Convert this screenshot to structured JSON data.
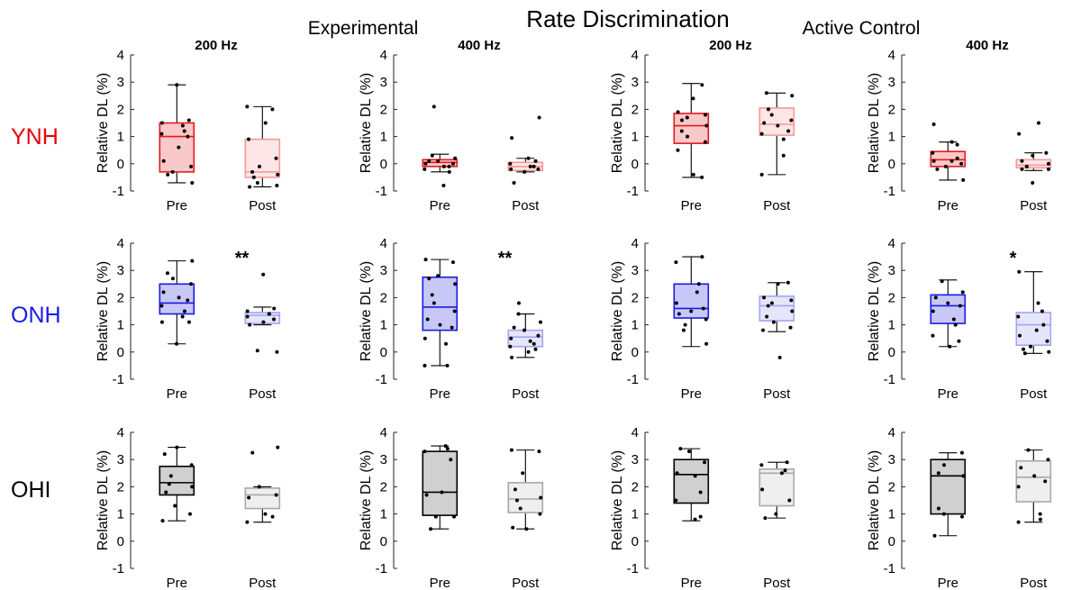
{
  "title": "Rate Discrimination",
  "group_labels": [
    "Experimental",
    "Active Control"
  ],
  "colors": {
    "YNH": {
      "pre_fill": "#f9c8c8",
      "pre_stroke": "#e41a1c",
      "post_fill": "#fde6e6",
      "post_stroke": "#f39a9a",
      "label": "#e8000b"
    },
    "ONH": {
      "pre_fill": "#c8c8f7",
      "pre_stroke": "#1a1ae4",
      "post_fill": "#e6e6fb",
      "post_stroke": "#a5a5f0",
      "label": "#1a1ae8"
    },
    "OHI": {
      "pre_fill": "#d0d0d0",
      "pre_stroke": "#000000",
      "post_fill": "#efefef",
      "post_stroke": "#a8a8a8",
      "label": "#000000"
    }
  },
  "chart_data": [
    {
      "type": "box",
      "group": "YNH",
      "condition": "Experimental",
      "title": "200 Hz",
      "ylabel": "Relative DL (%)",
      "ylim": [
        -1,
        4
      ],
      "yticks": [
        "-1",
        "0",
        "1",
        "2",
        "3",
        "4"
      ],
      "categories": [
        "Pre",
        "Post"
      ],
      "significance": "",
      "boxes": [
        {
          "label": "Pre",
          "whisker_low": -0.7,
          "q1": -0.3,
          "median": 1.0,
          "q3": 1.5,
          "whisker_high": 2.9,
          "points": [
            2.9,
            1.6,
            1.5,
            1.4,
            1.2,
            1.1,
            1.0,
            0.6,
            0.1,
            -0.1,
            -0.3,
            -0.4,
            -0.7
          ]
        },
        {
          "label": "Post",
          "whisker_low": -0.85,
          "q1": -0.5,
          "median": -0.3,
          "q3": 0.9,
          "whisker_high": 2.1,
          "points": [
            2.1,
            2.0,
            1.5,
            0.9,
            0.2,
            -0.1,
            -0.3,
            -0.4,
            -0.5,
            -0.7,
            -0.8,
            -0.85
          ]
        }
      ]
    },
    {
      "type": "box",
      "group": "YNH",
      "condition": "Experimental",
      "title": "400 Hz",
      "ylabel": "Relative DL (%)",
      "ylim": [
        -1,
        4
      ],
      "yticks": [
        "-1",
        "0",
        "1",
        "2",
        "3",
        "4"
      ],
      "categories": [
        "Pre",
        "Post"
      ],
      "significance": "",
      "boxes": [
        {
          "label": "Pre",
          "whisker_low": -0.3,
          "q1": -0.1,
          "median": 0.05,
          "q3": 0.15,
          "whisker_high": 0.35,
          "points": [
            2.1,
            0.3,
            0.2,
            0.1,
            0.1,
            0.0,
            0.0,
            -0.1,
            -0.1,
            -0.2,
            -0.3,
            -0.8
          ]
        },
        {
          "label": "Post",
          "whisker_low": -0.3,
          "q1": -0.25,
          "median": -0.1,
          "q3": 0.05,
          "whisker_high": 0.2,
          "points": [
            1.7,
            0.95,
            0.2,
            0.1,
            0.0,
            -0.1,
            -0.1,
            -0.2,
            -0.2,
            -0.3,
            -0.7
          ]
        }
      ]
    },
    {
      "type": "box",
      "group": "YNH",
      "condition": "Active Control",
      "title": "200 Hz",
      "ylabel": "Relative DL (%)",
      "ylim": [
        -1,
        4
      ],
      "yticks": [
        "-1",
        "0",
        "1",
        "2",
        "3",
        "4"
      ],
      "categories": [
        "Pre",
        "Post"
      ],
      "significance": "",
      "boxes": [
        {
          "label": "Pre",
          "whisker_low": -0.5,
          "q1": 0.75,
          "median": 1.4,
          "q3": 1.85,
          "whisker_high": 2.95,
          "points": [
            2.9,
            2.4,
            1.9,
            1.8,
            1.7,
            1.6,
            1.4,
            1.2,
            1.0,
            0.8,
            0.5,
            -0.4,
            -0.5
          ]
        },
        {
          "label": "Post",
          "whisker_low": -0.4,
          "q1": 1.05,
          "median": 1.45,
          "q3": 2.05,
          "whisker_high": 2.6,
          "points": [
            2.6,
            2.5,
            2.0,
            1.8,
            1.6,
            1.5,
            1.4,
            1.2,
            1.1,
            0.9,
            0.3,
            -0.4
          ]
        }
      ]
    },
    {
      "type": "box",
      "group": "YNH",
      "condition": "Active Control",
      "title": "400 Hz",
      "ylabel": "Relative DL (%)",
      "ylim": [
        -1,
        4
      ],
      "yticks": [
        "-1",
        "0",
        "1",
        "2",
        "3",
        "4"
      ],
      "categories": [
        "Pre",
        "Post"
      ],
      "significance": "",
      "boxes": [
        {
          "label": "Pre",
          "whisker_low": -0.6,
          "q1": -0.1,
          "median": 0.15,
          "q3": 0.45,
          "whisker_high": 0.8,
          "points": [
            1.45,
            0.8,
            0.7,
            0.4,
            0.2,
            0.1,
            0.1,
            0.0,
            -0.1,
            -0.2,
            -0.6
          ]
        },
        {
          "label": "Post",
          "whisker_low": -0.25,
          "q1": -0.15,
          "median": -0.05,
          "q3": 0.15,
          "whisker_high": 0.4,
          "points": [
            1.5,
            1.1,
            0.4,
            0.3,
            0.1,
            0.0,
            -0.1,
            -0.1,
            -0.2,
            -0.2,
            -0.7
          ]
        }
      ]
    },
    {
      "type": "box",
      "group": "ONH",
      "condition": "Experimental",
      "title": "",
      "ylabel": "Relative DL (%)",
      "ylim": [
        -1,
        4
      ],
      "yticks": [
        "-1",
        "0",
        "1",
        "2",
        "3",
        "4"
      ],
      "categories": [
        "Pre",
        "Post"
      ],
      "significance": "**",
      "boxes": [
        {
          "label": "Pre",
          "whisker_low": 0.3,
          "q1": 1.4,
          "median": 1.8,
          "q3": 2.5,
          "whisker_high": 3.35,
          "points": [
            3.35,
            2.9,
            2.7,
            2.5,
            2.2,
            2.0,
            1.9,
            1.7,
            1.5,
            1.3,
            1.1,
            1.1,
            0.3
          ]
        },
        {
          "label": "Post",
          "whisker_low": 1.0,
          "q1": 1.05,
          "median": 1.35,
          "q3": 1.45,
          "whisker_high": 1.65,
          "points": [
            2.85,
            1.6,
            1.5,
            1.4,
            1.4,
            1.3,
            1.2,
            1.1,
            1.0,
            0.0,
            0.05
          ]
        }
      ]
    },
    {
      "type": "box",
      "group": "ONH",
      "condition": "Experimental",
      "title": "",
      "ylabel": "Relative DL (%)",
      "ylim": [
        -1,
        4
      ],
      "yticks": [
        "-1",
        "0",
        "1",
        "2",
        "3",
        "4"
      ],
      "categories": [
        "Pre",
        "Post"
      ],
      "significance": "**",
      "boxes": [
        {
          "label": "Pre",
          "whisker_low": -0.5,
          "q1": 0.8,
          "median": 1.65,
          "q3": 2.75,
          "whisker_high": 3.4,
          "points": [
            3.4,
            3.3,
            2.8,
            2.7,
            2.5,
            2.1,
            1.8,
            1.5,
            1.2,
            1.0,
            0.9,
            0.5,
            0.3,
            -0.5,
            -0.5
          ]
        },
        {
          "label": "Post",
          "whisker_low": -0.2,
          "q1": 0.2,
          "median": 0.55,
          "q3": 0.8,
          "whisker_high": 1.4,
          "points": [
            1.8,
            1.4,
            1.1,
            0.9,
            0.8,
            0.6,
            0.5,
            0.4,
            0.3,
            0.2,
            0.1,
            0.0,
            -0.2
          ]
        }
      ]
    },
    {
      "type": "box",
      "group": "ONH",
      "condition": "Active Control",
      "title": "",
      "ylabel": "Relative DL (%)",
      "ylim": [
        -1,
        4
      ],
      "yticks": [
        "-1",
        "0",
        "1",
        "2",
        "3",
        "4"
      ],
      "categories": [
        "Pre",
        "Post"
      ],
      "significance": "",
      "boxes": [
        {
          "label": "Pre",
          "whisker_low": 0.2,
          "q1": 1.25,
          "median": 1.6,
          "q3": 2.5,
          "whisker_high": 3.5,
          "points": [
            3.5,
            3.3,
            2.5,
            2.2,
            1.8,
            1.6,
            1.5,
            1.4,
            1.2,
            1.0,
            0.8,
            0.3
          ]
        },
        {
          "label": "Post",
          "whisker_low": 0.75,
          "q1": 1.15,
          "median": 1.7,
          "q3": 2.05,
          "whisker_high": 2.55,
          "points": [
            2.55,
            2.5,
            2.0,
            1.9,
            1.8,
            1.7,
            1.5,
            1.3,
            1.1,
            0.9,
            0.8,
            -0.2
          ]
        }
      ]
    },
    {
      "type": "box",
      "group": "ONH",
      "condition": "Active Control",
      "title": "",
      "ylabel": "Relative DL (%)",
      "ylim": [
        -1,
        4
      ],
      "yticks": [
        "-1",
        "0",
        "1",
        "2",
        "3",
        "4"
      ],
      "categories": [
        "Pre",
        "Post"
      ],
      "significance": "*",
      "boxes": [
        {
          "label": "Pre",
          "whisker_low": 0.2,
          "q1": 1.05,
          "median": 1.7,
          "q3": 2.1,
          "whisker_high": 2.65,
          "points": [
            2.6,
            2.2,
            2.0,
            1.8,
            1.7,
            1.5,
            1.2,
            1.0,
            0.6,
            0.4,
            0.2
          ]
        },
        {
          "label": "Post",
          "whisker_low": -0.05,
          "q1": 0.25,
          "median": 1.0,
          "q3": 1.45,
          "whisker_high": 2.95,
          "points": [
            2.95,
            1.8,
            1.5,
            1.3,
            1.0,
            0.8,
            0.6,
            0.4,
            0.2,
            0.1,
            0.0,
            -0.05
          ]
        }
      ]
    },
    {
      "type": "box",
      "group": "OHI",
      "condition": "Experimental",
      "title": "",
      "ylabel": "Relative DL (%)",
      "ylim": [
        -1,
        4
      ],
      "yticks": [
        "-1",
        "0",
        "1",
        "2",
        "3",
        "4"
      ],
      "categories": [
        "Pre",
        "Post"
      ],
      "significance": "",
      "boxes": [
        {
          "label": "Pre",
          "whisker_low": 0.75,
          "q1": 1.7,
          "median": 2.15,
          "q3": 2.75,
          "whisker_high": 3.45,
          "points": [
            3.45,
            3.2,
            2.8,
            2.4,
            2.1,
            2.0,
            1.8,
            1.3,
            1.0,
            0.75
          ]
        },
        {
          "label": "Post",
          "whisker_low": 0.7,
          "q1": 1.2,
          "median": 1.7,
          "q3": 1.95,
          "whisker_high": 2.0,
          "points": [
            3.45,
            3.25,
            2.0,
            1.7,
            1.6,
            1.0,
            0.9,
            0.7
          ]
        }
      ]
    },
    {
      "type": "box",
      "group": "OHI",
      "condition": "Experimental",
      "title": "",
      "ylabel": "Relative DL (%)",
      "ylim": [
        -1,
        4
      ],
      "yticks": [
        "-1",
        "0",
        "1",
        "2",
        "3",
        "4"
      ],
      "categories": [
        "Pre",
        "Post"
      ],
      "significance": "",
      "boxes": [
        {
          "label": "Pre",
          "whisker_low": 0.45,
          "q1": 0.95,
          "median": 1.8,
          "q3": 3.3,
          "whisker_high": 3.5,
          "points": [
            3.5,
            3.4,
            3.3,
            3.0,
            1.8,
            1.7,
            0.9,
            0.9,
            0.45
          ]
        },
        {
          "label": "Post",
          "whisker_low": 0.45,
          "q1": 1.05,
          "median": 1.55,
          "q3": 2.15,
          "whisker_high": 3.35,
          "points": [
            3.35,
            3.3,
            2.5,
            1.9,
            1.6,
            1.5,
            1.2,
            1.0,
            0.5,
            0.45
          ]
        }
      ]
    },
    {
      "type": "box",
      "group": "OHI",
      "condition": "Active Control",
      "title": "",
      "ylabel": "Relative DL (%)",
      "ylim": [
        -1,
        4
      ],
      "yticks": [
        "-1",
        "0",
        "1",
        "2",
        "3",
        "4"
      ],
      "categories": [
        "Pre",
        "Post"
      ],
      "significance": "",
      "boxes": [
        {
          "label": "Pre",
          "whisker_low": 0.75,
          "q1": 1.4,
          "median": 2.45,
          "q3": 3.0,
          "whisker_high": 3.4,
          "points": [
            3.4,
            3.3,
            2.9,
            2.5,
            2.4,
            1.8,
            1.5,
            0.9,
            0.8
          ]
        },
        {
          "label": "Post",
          "whisker_low": 0.85,
          "q1": 1.3,
          "median": 2.5,
          "q3": 2.65,
          "whisker_high": 2.9,
          "points": [
            2.9,
            2.8,
            2.6,
            2.5,
            1.9,
            1.5,
            1.0,
            0.85
          ]
        }
      ]
    },
    {
      "type": "box",
      "group": "OHI",
      "condition": "Active Control",
      "title": "",
      "ylabel": "Relative DL (%)",
      "ylim": [
        -1,
        4
      ],
      "yticks": [
        "-1",
        "0",
        "1",
        "2",
        "3",
        "4"
      ],
      "categories": [
        "Pre",
        "Post"
      ],
      "significance": "",
      "boxes": [
        {
          "label": "Pre",
          "whisker_low": 0.2,
          "q1": 1.0,
          "median": 2.4,
          "q3": 3.0,
          "whisker_high": 3.25,
          "points": [
            3.25,
            2.8,
            2.5,
            2.4,
            1.2,
            1.0,
            0.9,
            0.2
          ]
        },
        {
          "label": "Post",
          "whisker_low": 0.7,
          "q1": 1.45,
          "median": 2.35,
          "q3": 2.95,
          "whisker_high": 3.35,
          "points": [
            3.35,
            3.0,
            2.7,
            2.4,
            2.2,
            2.0,
            1.0,
            0.8,
            0.7
          ]
        }
      ]
    }
  ]
}
